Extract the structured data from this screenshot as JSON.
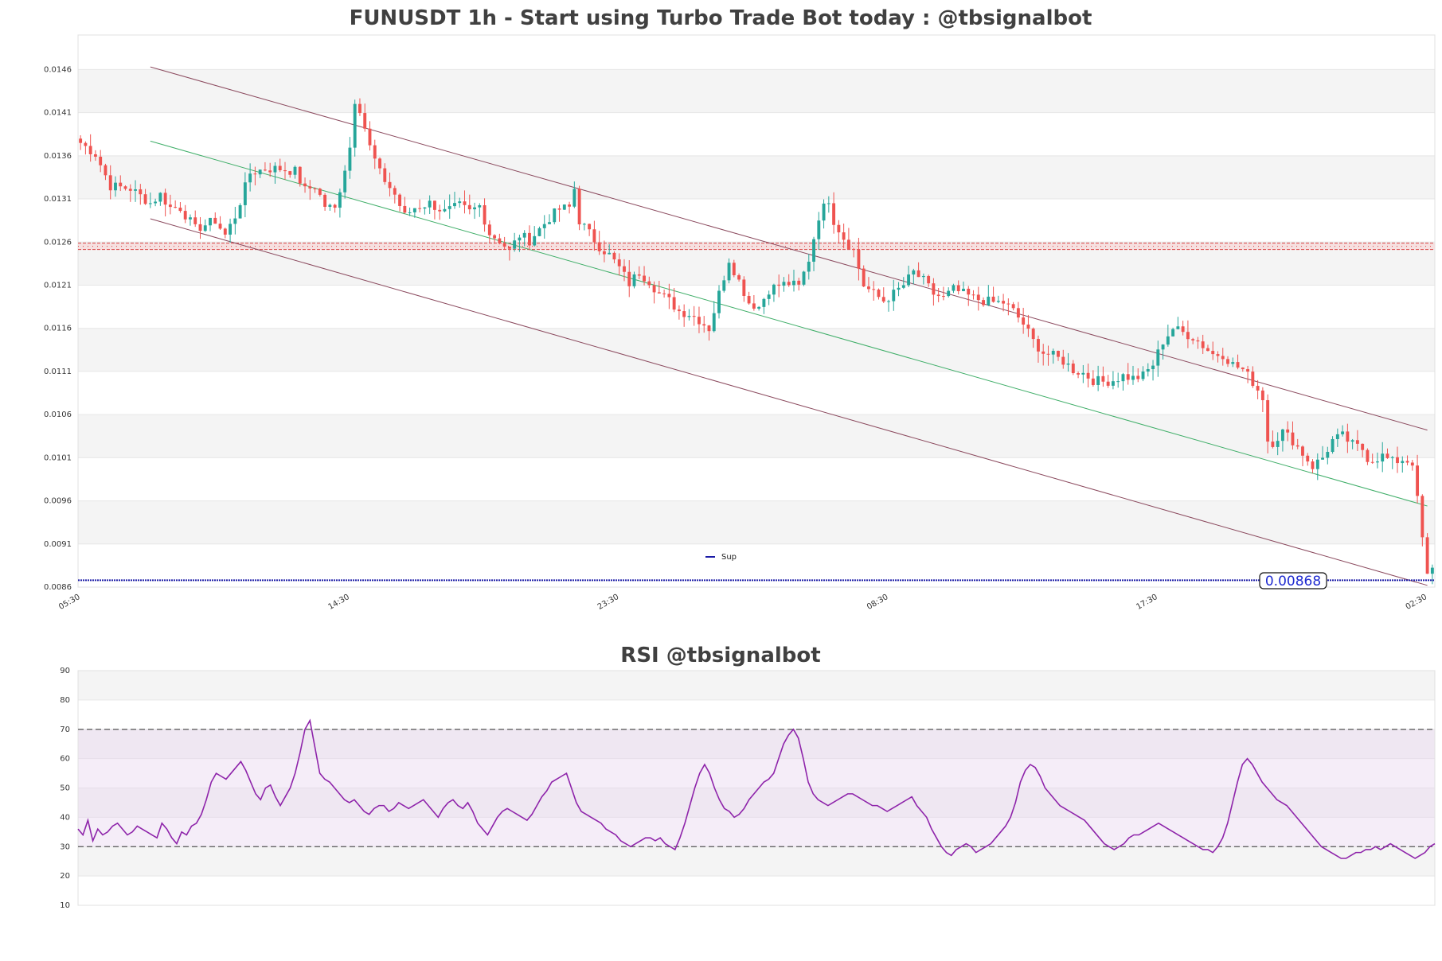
{
  "chart_data": [
    {
      "type": "candlestick",
      "title": "FUNUSDT 1h - Start using Turbo Trade Bot today : @tbsignalbot",
      "ylim": [
        0.0086,
        0.015
      ],
      "y_ticks": [
        "0.0086",
        "0.0091",
        "0.0096",
        "0.0101",
        "0.0106",
        "0.0111",
        "0.0116",
        "0.0121",
        "0.0126",
        "0.0131",
        "0.0136",
        "0.0141",
        "0.0146"
      ],
      "x_tick_labels": [
        "05:30",
        "14:30",
        "23:30",
        "08:30",
        "17:30",
        "02:30"
      ],
      "x_tick_index": [
        0,
        54,
        108,
        162,
        216,
        270
      ],
      "candle_count": 272,
      "legend": {
        "label": "Sup",
        "placement": "center-bottom"
      },
      "current_price_label": "0.00868",
      "support_level": 0.00868,
      "resistance_level": 0.01255,
      "colors": {
        "up": "#26a69a",
        "down": "#ef5350",
        "channel": "#8b4a5e",
        "mid": "#3fae68",
        "support": "#1a1aa6",
        "resistance": "#d94040"
      },
      "channel": {
        "upper": {
          "start": [
            14,
            0.01463
          ],
          "end": [
            270,
            0.01042
          ]
        },
        "middle": {
          "start": [
            14,
            0.01377
          ],
          "end": [
            270,
            0.00954
          ]
        },
        "lower": {
          "start": [
            14,
            0.01287
          ],
          "end": [
            270,
            0.00862
          ]
        }
      },
      "close_anchors": [
        [
          0,
          0.01375
        ],
        [
          3,
          0.01362
        ],
        [
          6,
          0.01325
        ],
        [
          10,
          0.01322
        ],
        [
          14,
          0.01305
        ],
        [
          16,
          0.01315
        ],
        [
          18,
          0.013
        ],
        [
          20,
          0.013
        ],
        [
          23,
          0.01275
        ],
        [
          27,
          0.01285
        ],
        [
          29,
          0.01268
        ],
        [
          31,
          0.0129
        ],
        [
          34,
          0.0134
        ],
        [
          37,
          0.01345
        ],
        [
          40,
          0.01345
        ],
        [
          43,
          0.01342
        ],
        [
          45,
          0.0132
        ],
        [
          47,
          0.01325
        ],
        [
          49,
          0.01302
        ],
        [
          51,
          0.01298
        ],
        [
          52,
          0.01322
        ],
        [
          54,
          0.0137
        ],
        [
          55,
          0.01425
        ],
        [
          56,
          0.01415
        ],
        [
          58,
          0.0137
        ],
        [
          60,
          0.0134
        ],
        [
          63,
          0.01315
        ],
        [
          65,
          0.0129
        ],
        [
          67,
          0.013
        ],
        [
          70,
          0.01305
        ],
        [
          73,
          0.01295
        ],
        [
          76,
          0.01302
        ],
        [
          78,
          0.01295
        ],
        [
          80,
          0.01302
        ],
        [
          82,
          0.0127
        ],
        [
          84,
          0.01262
        ],
        [
          86,
          0.0125
        ],
        [
          88,
          0.01268
        ],
        [
          90,
          0.01262
        ],
        [
          92,
          0.01275
        ],
        [
          94,
          0.01288
        ],
        [
          96,
          0.01298
        ],
        [
          98,
          0.013
        ],
        [
          99,
          0.01322
        ],
        [
          100,
          0.01285
        ],
        [
          102,
          0.0127
        ],
        [
          104,
          0.01255
        ],
        [
          106,
          0.01245
        ],
        [
          108,
          0.0123
        ],
        [
          110,
          0.01212
        ],
        [
          112,
          0.01225
        ],
        [
          114,
          0.01215
        ],
        [
          116,
          0.012
        ],
        [
          118,
          0.01192
        ],
        [
          120,
          0.0118
        ],
        [
          122,
          0.01177
        ],
        [
          124,
          0.0117
        ],
        [
          126,
          0.0116
        ],
        [
          128,
          0.012
        ],
        [
          130,
          0.0124
        ],
        [
          132,
          0.01215
        ],
        [
          134,
          0.0119
        ],
        [
          136,
          0.01185
        ],
        [
          138,
          0.01205
        ],
        [
          140,
          0.0121
        ],
        [
          142,
          0.01212
        ],
        [
          144,
          0.01208
        ],
        [
          146,
          0.0124
        ],
        [
          148,
          0.0129
        ],
        [
          150,
          0.0131
        ],
        [
          151,
          0.01285
        ],
        [
          153,
          0.01265
        ],
        [
          155,
          0.0125
        ],
        [
          157,
          0.0121
        ],
        [
          159,
          0.012
        ],
        [
          161,
          0.01192
        ],
        [
          163,
          0.012
        ],
        [
          165,
          0.0121
        ],
        [
          167,
          0.01225
        ],
        [
          169,
          0.01215
        ],
        [
          171,
          0.012
        ],
        [
          173,
          0.01195
        ],
        [
          175,
          0.01205
        ],
        [
          177,
          0.012
        ],
        [
          179,
          0.01195
        ],
        [
          181,
          0.01192
        ],
        [
          183,
          0.0119
        ],
        [
          185,
          0.0119
        ],
        [
          187,
          0.0118
        ],
        [
          189,
          0.01165
        ],
        [
          191,
          0.01145
        ],
        [
          193,
          0.01132
        ],
        [
          195,
          0.01128
        ],
        [
          197,
          0.01122
        ],
        [
          199,
          0.01112
        ],
        [
          201,
          0.01108
        ],
        [
          203,
          0.011
        ],
        [
          205,
          0.01098
        ],
        [
          207,
          0.011
        ],
        [
          209,
          0.01105
        ],
        [
          211,
          0.01102
        ],
        [
          213,
          0.01105
        ],
        [
          215,
          0.01118
        ],
        [
          217,
          0.01145
        ],
        [
          219,
          0.0116
        ],
        [
          221,
          0.01155
        ],
        [
          223,
          0.0115
        ],
        [
          225,
          0.0114
        ],
        [
          227,
          0.0113
        ],
        [
          229,
          0.0113
        ],
        [
          231,
          0.01118
        ],
        [
          233,
          0.01112
        ],
        [
          235,
          0.01098
        ],
        [
          237,
          0.0108
        ],
        [
          238,
          0.0103
        ],
        [
          239,
          0.01028
        ],
        [
          241,
          0.0104
        ],
        [
          243,
          0.0103
        ],
        [
          245,
          0.01015
        ],
        [
          247,
          0.01
        ],
        [
          249,
          0.0101
        ],
        [
          251,
          0.0103
        ],
        [
          253,
          0.01035
        ],
        [
          255,
          0.01025
        ],
        [
          257,
          0.0102
        ],
        [
          258,
          0.0101
        ],
        [
          259,
          0.01008
        ],
        [
          261,
          0.01012
        ],
        [
          263,
          0.01005
        ],
        [
          265,
          0.01008
        ],
        [
          267,
          0.01005
        ],
        [
          270,
          0.00872
        ],
        [
          271,
          0.0088
        ]
      ]
    },
    {
      "type": "line",
      "title": "RSI @tbsignalbot",
      "ylim": [
        10,
        90
      ],
      "y_ticks": [
        "10",
        "20",
        "30",
        "40",
        "50",
        "60",
        "70",
        "80",
        "90"
      ],
      "overbought": 70,
      "oversold": 30,
      "line_color": "#8e24aa",
      "values": [
        36,
        34,
        39,
        32,
        36,
        34,
        35,
        37,
        38,
        36,
        34,
        35,
        37,
        36,
        35,
        34,
        33,
        38,
        36,
        33,
        31,
        35,
        34,
        37,
        38,
        41,
        46,
        52,
        55,
        54,
        53,
        55,
        57,
        59,
        56,
        52,
        48,
        46,
        50,
        51,
        47,
        44,
        47,
        50,
        55,
        62,
        70,
        73,
        64,
        55,
        53,
        52,
        50,
        48,
        46,
        45,
        46,
        44,
        42,
        41,
        43,
        44,
        44,
        42,
        43,
        45,
        44,
        43,
        44,
        45,
        46,
        44,
        42,
        40,
        43,
        45,
        46,
        44,
        43,
        45,
        42,
        38,
        36,
        34,
        37,
        40,
        42,
        43,
        42,
        41,
        40,
        39,
        41,
        44,
        47,
        49,
        52,
        53,
        54,
        55,
        50,
        45,
        42,
        41,
        40,
        39,
        38,
        36,
        35,
        34,
        32,
        31,
        30,
        31,
        32,
        33,
        33,
        32,
        33,
        31,
        30,
        29,
        33,
        38,
        44,
        50,
        55,
        58,
        55,
        50,
        46,
        43,
        42,
        40,
        41,
        43,
        46,
        48,
        50,
        52,
        53,
        55,
        60,
        65,
        68,
        70,
        67,
        60,
        52,
        48,
        46,
        45,
        44,
        45,
        46,
        47,
        48,
        48,
        47,
        46,
        45,
        44,
        44,
        43,
        42,
        43,
        44,
        45,
        46,
        47,
        44,
        42,
        40,
        36,
        33,
        30,
        28,
        27,
        29,
        30,
        31,
        30,
        28,
        29,
        30,
        31,
        33,
        35,
        37,
        40,
        45,
        52,
        56,
        58,
        57,
        54,
        50,
        48,
        46,
        44,
        43,
        42,
        41,
        40,
        39,
        37,
        35,
        33,
        31,
        30,
        29,
        30,
        31,
        33,
        34,
        34,
        35,
        36,
        37,
        38,
        37,
        36,
        35,
        34,
        33,
        32,
        31,
        30,
        29,
        29,
        28,
        30,
        33,
        38,
        45,
        52,
        58,
        60,
        58,
        55,
        52,
        50,
        48,
        46,
        45,
        44,
        42,
        40,
        38,
        36,
        34,
        32,
        30,
        29,
        28,
        27,
        26,
        26,
        27,
        28,
        28,
        29,
        29,
        30,
        29,
        30,
        31,
        30,
        29,
        28,
        27,
        26,
        27,
        28,
        30,
        31
      ]
    }
  ]
}
